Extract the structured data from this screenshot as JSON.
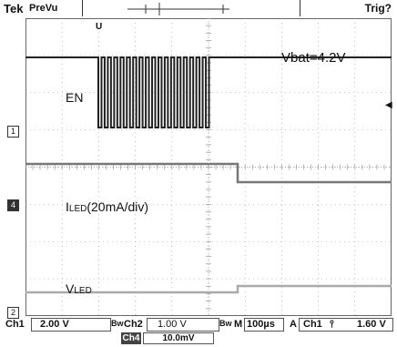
{
  "header": {
    "brand": "Tek",
    "mode": "PreVu",
    "trigger_status": "Trig?",
    "trigger_marker": "U"
  },
  "annotations": {
    "vbat": "Vbat=4.2V",
    "en": "EN",
    "iled_main": "I",
    "iled_sub": "LED",
    "iled_rest": "(20mA/div)",
    "vled_main": "V",
    "vled_sub": "LED"
  },
  "channel_markers": {
    "ch1": "1",
    "ch4": "4",
    "ch2": "2"
  },
  "footer": {
    "ch1_label": "Ch1",
    "ch1_scale": "2.00 V",
    "ch2_label": "Ch2",
    "ch2_scale": "1.00 V",
    "timebase_label": "M",
    "timebase": "100µs",
    "trigger_mode": "A",
    "trigger_source": "Ch1",
    "trigger_slope": "⫯",
    "trigger_level": "1.60 V",
    "ch4_label": "Ch4",
    "ch4_scale": "10.0mV"
  },
  "colors": {
    "trace": "#222222",
    "trace_grey": "#777777",
    "grid": "#999999",
    "background": "#ffffff"
  }
}
